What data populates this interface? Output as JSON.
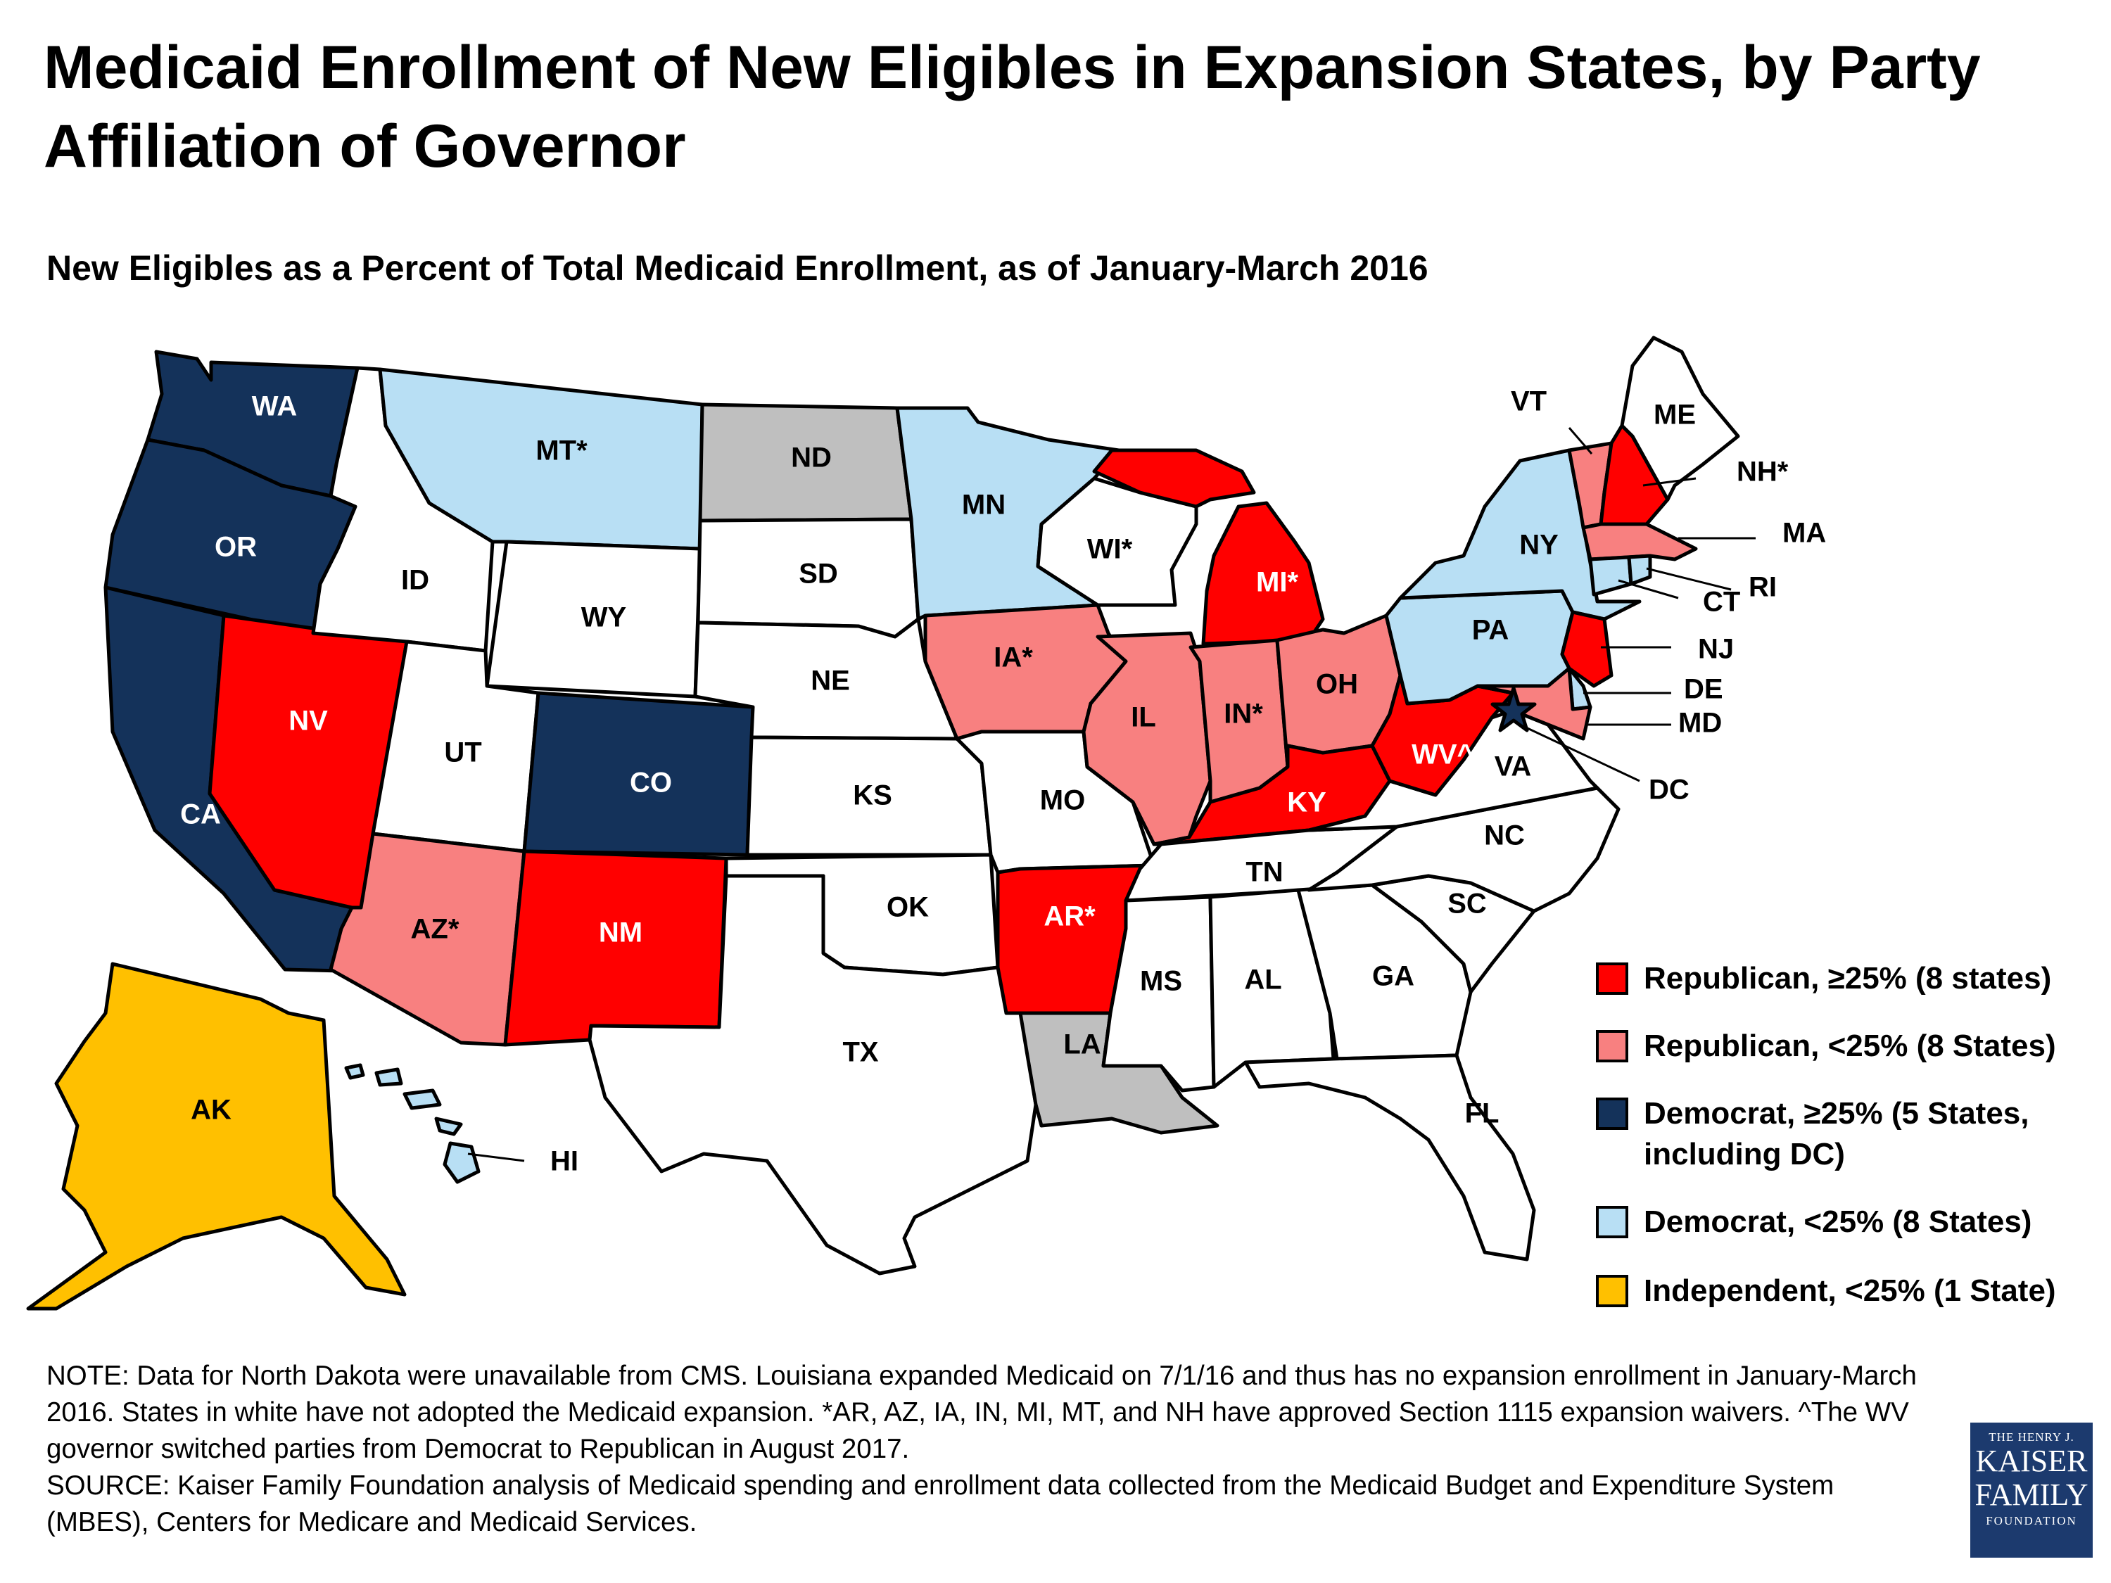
{
  "title": "Medicaid Enrollment of New Eligibles in Expansion States, by Party Affiliation of Governor",
  "subtitle": "New Eligibles as a Percent of Total Medicaid Enrollment, as of January-March 2016",
  "colors": {
    "rep_high": "#ff0000",
    "rep_low": "#f88080",
    "dem_high": "#14325a",
    "dem_low": "#b8dff4",
    "ind_low": "#ffc000",
    "not_expanded": "#ffffff",
    "no_data": "#bfbfbf"
  },
  "legend": [
    {
      "category": "rep_high",
      "label": "Republican, ≥25% (8 states)"
    },
    {
      "category": "rep_low",
      "label": "Republican, <25% (8 States)"
    },
    {
      "category": "dem_high",
      "label": "Democrat, ≥25% (5 States,\nincluding DC)"
    },
    {
      "category": "dem_low",
      "label": "Democrat, <25% (8 States)"
    },
    {
      "category": "ind_low",
      "label": "Independent, <25% (1 State)"
    }
  ],
  "states": {
    "WA": {
      "label": "WA",
      "category": "dem_high"
    },
    "OR": {
      "label": "OR",
      "category": "dem_high"
    },
    "CA": {
      "label": "CA",
      "category": "dem_high"
    },
    "NV": {
      "label": "NV",
      "category": "rep_high"
    },
    "ID": {
      "label": "ID",
      "category": "not_expanded"
    },
    "MT": {
      "label": "MT*",
      "category": "dem_low"
    },
    "WY": {
      "label": "WY",
      "category": "not_expanded"
    },
    "UT": {
      "label": "UT",
      "category": "not_expanded"
    },
    "AZ": {
      "label": "AZ*",
      "category": "rep_low"
    },
    "CO": {
      "label": "CO",
      "category": "dem_high"
    },
    "NM": {
      "label": "NM",
      "category": "rep_high"
    },
    "ND": {
      "label": "ND",
      "category": "no_data"
    },
    "SD": {
      "label": "SD",
      "category": "not_expanded"
    },
    "NE": {
      "label": "NE",
      "category": "not_expanded"
    },
    "KS": {
      "label": "KS",
      "category": "not_expanded"
    },
    "OK": {
      "label": "OK",
      "category": "not_expanded"
    },
    "TX": {
      "label": "TX",
      "category": "not_expanded"
    },
    "MN": {
      "label": "MN",
      "category": "dem_low"
    },
    "IA": {
      "label": "IA*",
      "category": "rep_low"
    },
    "MO": {
      "label": "MO",
      "category": "not_expanded"
    },
    "AR": {
      "label": "AR*",
      "category": "rep_high"
    },
    "LA": {
      "label": "LA",
      "category": "no_data"
    },
    "WI": {
      "label": "WI*",
      "category": "not_expanded"
    },
    "IL": {
      "label": "IL",
      "category": "rep_low"
    },
    "MI": {
      "label": "MI*",
      "category": "rep_high"
    },
    "IN": {
      "label": "IN*",
      "category": "rep_low"
    },
    "OH": {
      "label": "OH",
      "category": "rep_low"
    },
    "KY": {
      "label": "KY",
      "category": "rep_high"
    },
    "TN": {
      "label": "TN",
      "category": "not_expanded"
    },
    "MS": {
      "label": "MS",
      "category": "not_expanded"
    },
    "AL": {
      "label": "AL",
      "category": "not_expanded"
    },
    "GA": {
      "label": "GA",
      "category": "not_expanded"
    },
    "FL": {
      "label": "FL",
      "category": "not_expanded"
    },
    "SC": {
      "label": "SC",
      "category": "not_expanded"
    },
    "NC": {
      "label": "NC",
      "category": "not_expanded"
    },
    "VA": {
      "label": "VA",
      "category": "not_expanded"
    },
    "WV": {
      "label": "WV^",
      "category": "rep_high"
    },
    "PA": {
      "label": "PA",
      "category": "dem_low"
    },
    "NY": {
      "label": "NY",
      "category": "dem_low"
    },
    "VT": {
      "label": "VT",
      "category": "rep_low"
    },
    "NH": {
      "label": "NH*",
      "category": "rep_high"
    },
    "ME": {
      "label": "ME",
      "category": "not_expanded"
    },
    "MA": {
      "label": "MA",
      "category": "rep_low"
    },
    "RI": {
      "label": "RI",
      "category": "dem_low"
    },
    "CT": {
      "label": "CT",
      "category": "dem_low"
    },
    "NJ": {
      "label": "NJ",
      "category": "rep_high"
    },
    "DE": {
      "label": "DE",
      "category": "dem_low"
    },
    "MD": {
      "label": "MD",
      "category": "rep_low"
    },
    "DC": {
      "label": "DC",
      "category": "dem_high"
    },
    "AK": {
      "label": "AK",
      "category": "ind_low"
    },
    "HI": {
      "label": "HI",
      "category": "dem_low"
    }
  },
  "note": "NOTE: Data for North Dakota were unavailable from CMS. Louisiana expanded Medicaid on 7/1/16 and thus has no expansion enrollment in January-March 2016. States in white have not adopted the Medicaid expansion. *AR, AZ, IA, IN, MI, MT, and NH have approved Section 1115 expansion waivers. ^The WV governor switched parties from Democrat to Republican in August 2017.",
  "source": "SOURCE: Kaiser Family Foundation analysis of Medicaid spending and enrollment data collected from the Medicaid Budget and Expenditure System (MBES), Centers for Medicare and Medicaid Services.",
  "logo": {
    "line1": "THE HENRY J.",
    "line2": "KAISER",
    "line3": "FAMILY",
    "line4": "FOUNDATION"
  }
}
